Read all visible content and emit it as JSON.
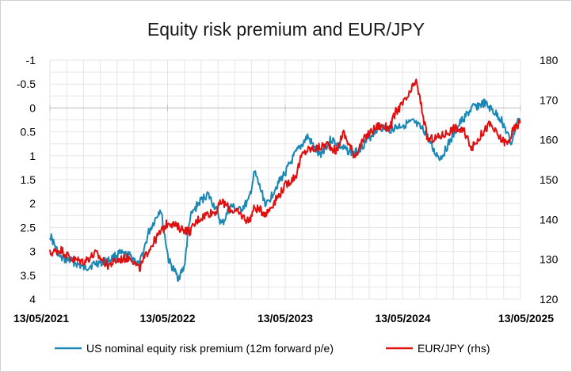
{
  "chart_data": {
    "type": "line",
    "title": "Equity risk premium and EUR/JPY",
    "x_ticks": [
      "13/05/2021",
      "13/05/2022",
      "13/05/2023",
      "13/05/2024",
      "13/05/2025"
    ],
    "x_range": [
      2021.36,
      2025.36
    ],
    "left_axis": {
      "ticks": [
        "-1",
        "-0.5",
        "0",
        "0.5",
        "1",
        "1.5",
        "2",
        "2.5",
        "3",
        "3.5",
        "4"
      ],
      "range": [
        -1,
        4
      ],
      "inverted": true
    },
    "right_axis": {
      "ticks": [
        "180",
        "170",
        "160",
        "150",
        "140",
        "130",
        "120"
      ],
      "range": [
        120,
        180
      ]
    },
    "grid": true,
    "series": [
      {
        "name": "US nominal equity risk premium (12m forward p/e)",
        "axis": "left",
        "color": "#1b87b5",
        "points": [
          [
            2021.36,
            2.65
          ],
          [
            2021.45,
            3.15
          ],
          [
            2021.55,
            3.2
          ],
          [
            2021.65,
            3.35
          ],
          [
            2021.75,
            3.25
          ],
          [
            2021.85,
            3.2
          ],
          [
            2021.95,
            3.05
          ],
          [
            2022.05,
            3.1
          ],
          [
            2022.12,
            3.3
          ],
          [
            2022.2,
            2.6
          ],
          [
            2022.3,
            2.1
          ],
          [
            2022.37,
            3.2
          ],
          [
            2022.45,
            3.55
          ],
          [
            2022.5,
            3.35
          ],
          [
            2022.55,
            2.3
          ],
          [
            2022.62,
            2.0
          ],
          [
            2022.7,
            1.8
          ],
          [
            2022.77,
            2.1
          ],
          [
            2022.82,
            2.45
          ],
          [
            2022.9,
            2.05
          ],
          [
            2022.97,
            2.15
          ],
          [
            2023.05,
            1.95
          ],
          [
            2023.1,
            1.35
          ],
          [
            2023.15,
            1.7
          ],
          [
            2023.2,
            2.05
          ],
          [
            2023.28,
            1.65
          ],
          [
            2023.36,
            1.35
          ],
          [
            2023.45,
            0.95
          ],
          [
            2023.55,
            0.6
          ],
          [
            2023.65,
            1.0
          ],
          [
            2023.75,
            0.65
          ],
          [
            2023.85,
            0.85
          ],
          [
            2023.95,
            0.95
          ],
          [
            2024.05,
            0.7
          ],
          [
            2024.15,
            0.4
          ],
          [
            2024.25,
            0.45
          ],
          [
            2024.36,
            0.35
          ],
          [
            2024.45,
            0.3
          ],
          [
            2024.55,
            0.5
          ],
          [
            2024.62,
            0.9
          ],
          [
            2024.68,
            1.05
          ],
          [
            2024.75,
            0.75
          ],
          [
            2024.85,
            0.3
          ],
          [
            2024.95,
            0.0
          ],
          [
            2025.05,
            -0.1
          ],
          [
            2025.12,
            0.05
          ],
          [
            2025.2,
            0.25
          ],
          [
            2025.28,
            0.75
          ],
          [
            2025.33,
            0.3
          ],
          [
            2025.36,
            0.25
          ]
        ]
      },
      {
        "name": "EUR/JPY (rhs)",
        "axis": "right",
        "color": "#e01010",
        "points": [
          [
            2021.36,
            131.5
          ],
          [
            2021.45,
            132.5
          ],
          [
            2021.55,
            130.0
          ],
          [
            2021.65,
            129.5
          ],
          [
            2021.75,
            131.5
          ],
          [
            2021.85,
            128.5
          ],
          [
            2021.95,
            130.0
          ],
          [
            2022.05,
            130.5
          ],
          [
            2022.12,
            127.5
          ],
          [
            2022.2,
            132.5
          ],
          [
            2022.28,
            136.0
          ],
          [
            2022.37,
            139.5
          ],
          [
            2022.45,
            138.0
          ],
          [
            2022.55,
            137.0
          ],
          [
            2022.62,
            140.0
          ],
          [
            2022.7,
            141.5
          ],
          [
            2022.77,
            142.0
          ],
          [
            2022.82,
            144.5
          ],
          [
            2022.9,
            142.5
          ],
          [
            2022.97,
            141.5
          ],
          [
            2023.05,
            139.5
          ],
          [
            2023.1,
            143.0
          ],
          [
            2023.2,
            141.5
          ],
          [
            2023.28,
            145.0
          ],
          [
            2023.36,
            148.5
          ],
          [
            2023.45,
            151.0
          ],
          [
            2023.5,
            156.0
          ],
          [
            2023.55,
            157.5
          ],
          [
            2023.65,
            158.0
          ],
          [
            2023.72,
            159.0
          ],
          [
            2023.8,
            157.0
          ],
          [
            2023.85,
            162.0
          ],
          [
            2023.95,
            156.0
          ],
          [
            2024.05,
            161.0
          ],
          [
            2024.15,
            163.5
          ],
          [
            2024.25,
            163.0
          ],
          [
            2024.3,
            167.0
          ],
          [
            2024.36,
            169.0
          ],
          [
            2024.42,
            171.5
          ],
          [
            2024.47,
            175.0
          ],
          [
            2024.52,
            168.0
          ],
          [
            2024.57,
            160.0
          ],
          [
            2024.65,
            160.5
          ],
          [
            2024.72,
            161.5
          ],
          [
            2024.8,
            163.0
          ],
          [
            2024.88,
            162.0
          ],
          [
            2024.95,
            158.0
          ],
          [
            2025.03,
            161.5
          ],
          [
            2025.1,
            164.0
          ],
          [
            2025.18,
            160.5
          ],
          [
            2025.25,
            159.0
          ],
          [
            2025.3,
            162.5
          ],
          [
            2025.36,
            164.5
          ]
        ]
      }
    ],
    "legend_position": "bottom"
  }
}
